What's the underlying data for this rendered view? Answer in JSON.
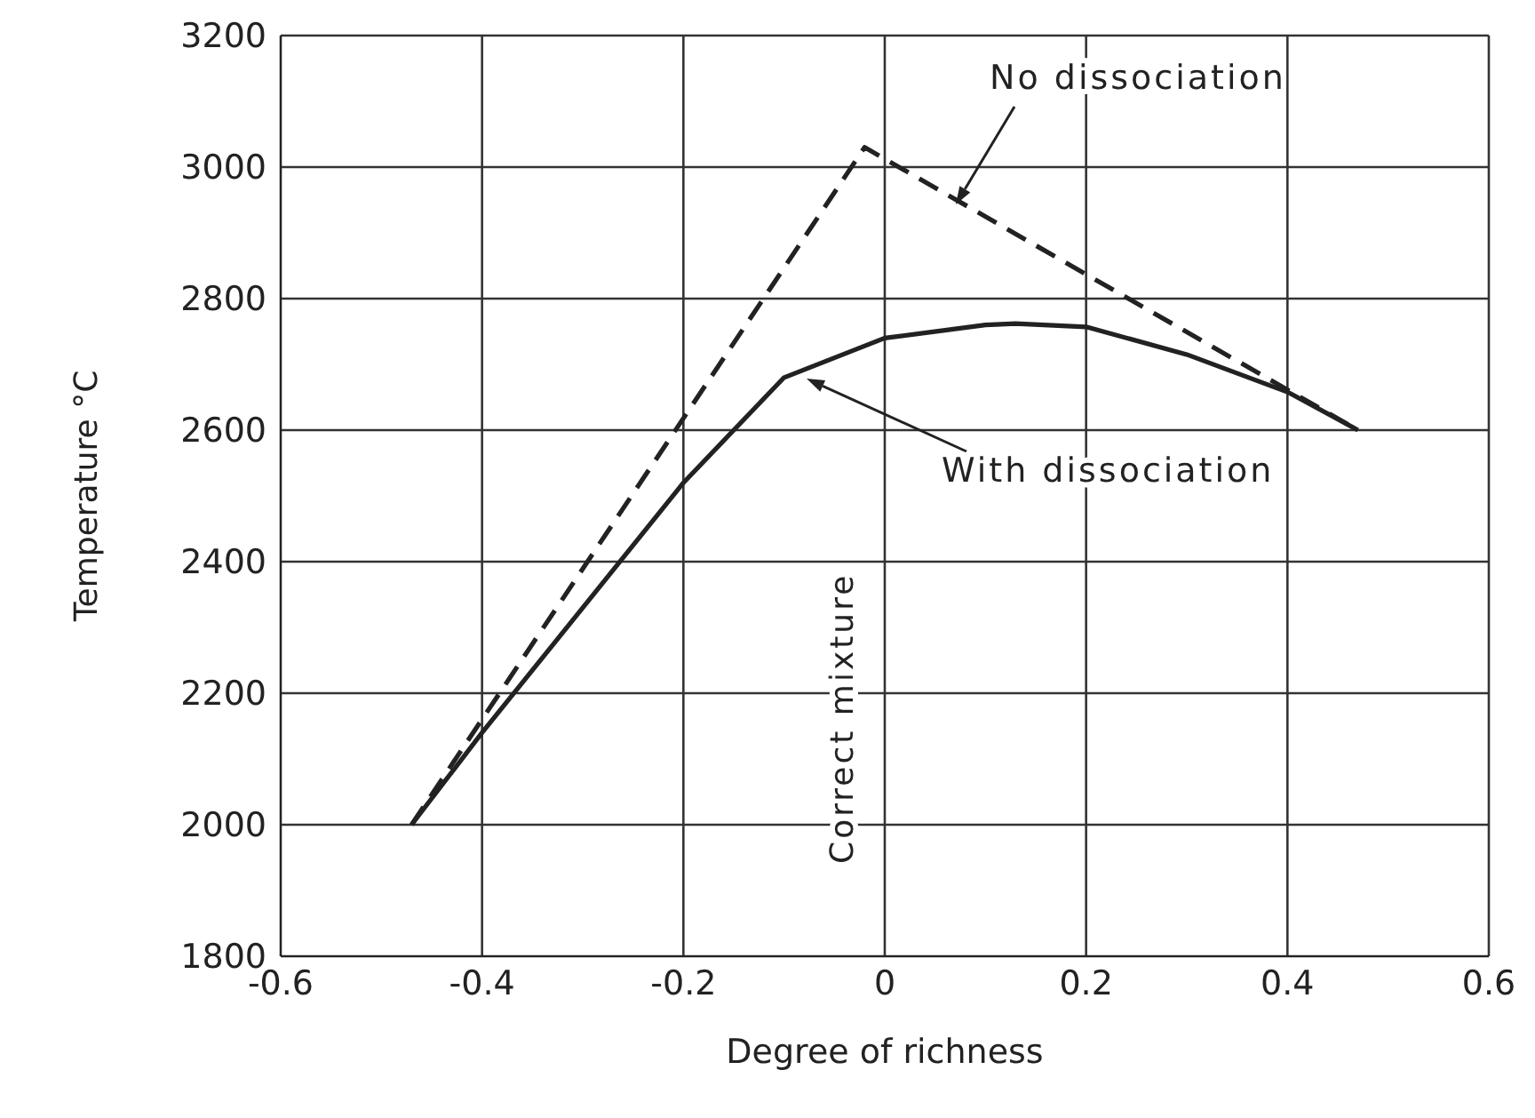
{
  "chart_data": {
    "type": "line",
    "xlabel": "Degree of richness",
    "ylabel": "Temperature °C",
    "xlim": [
      -0.6,
      0.6
    ],
    "ylim": [
      1800,
      3200
    ],
    "xticks": [
      -0.6,
      -0.4,
      -0.2,
      0,
      0.2,
      0.4,
      0.6
    ],
    "yticks": [
      1800,
      2000,
      2200,
      2400,
      2600,
      2800,
      3000,
      3200
    ],
    "grid": true,
    "legend": false,
    "marker": "none",
    "series": [
      {
        "x": [
          -0.47,
          -0.02,
          0.47
        ],
        "values": [
          2000,
          3030,
          2600
        ],
        "color": "#222222",
        "line_style": "dashed"
      },
      {
        "x": [
          -0.47,
          -0.4,
          -0.3,
          -0.2,
          -0.1,
          0,
          0.1,
          0.13,
          0.2,
          0.3,
          0.4,
          0.47
        ],
        "values": [
          2000,
          2140,
          2330,
          2520,
          2680,
          2740,
          2760,
          2762,
          2757,
          2715,
          2658,
          2600
        ],
        "color": "#222222",
        "line_style": "solid"
      }
    ],
    "annotations": [
      "No dissociation",
      "With dissociation",
      "Correct mixture"
    ]
  }
}
